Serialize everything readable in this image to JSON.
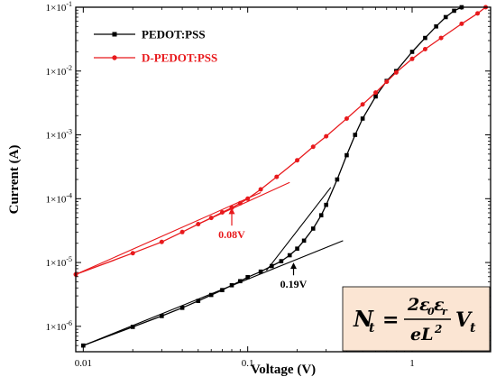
{
  "chart_data": {
    "type": "scatter",
    "xlabel": "Voltage (V)",
    "ylabel": "Current (A)",
    "xscale": "log",
    "yscale": "log",
    "xlim": [
      0.009,
      3.0
    ],
    "ylim": [
      4e-07,
      0.1
    ],
    "x_ticks": [
      {
        "value": 0.01,
        "label": "0.01"
      },
      {
        "value": 0.1,
        "label": "0.1"
      },
      {
        "value": 1,
        "label": "1"
      }
    ],
    "y_ticks": [
      {
        "value": 1e-06,
        "base": "1×10",
        "exp": "-6"
      },
      {
        "value": 1e-05,
        "base": "1×10",
        "exp": "-5"
      },
      {
        "value": 0.0001,
        "base": "1×10",
        "exp": "-4"
      },
      {
        "value": 0.001,
        "base": "1×10",
        "exp": "-3"
      },
      {
        "value": 0.01,
        "base": "1×10",
        "exp": "-2"
      },
      {
        "value": 0.1,
        "base": "1×10",
        "exp": "-1"
      }
    ],
    "grid": false,
    "legend_position": "top-left",
    "series": [
      {
        "name": "PEDOT:PSS",
        "color": "#000000",
        "marker": "square",
        "x": [
          0.01,
          0.02,
          0.03,
          0.04,
          0.05,
          0.06,
          0.07,
          0.08,
          0.09,
          0.1,
          0.12,
          0.14,
          0.16,
          0.18,
          0.2,
          0.22,
          0.25,
          0.28,
          0.3,
          0.35,
          0.4,
          0.45,
          0.5,
          0.6,
          0.7,
          0.8,
          1.0,
          1.2,
          1.4,
          1.6,
          1.8,
          2.0
        ],
        "y": [
          5e-07,
          9.8e-07,
          1.45e-06,
          1.95e-06,
          2.5e-06,
          3.1e-06,
          3.7e-06,
          4.4e-06,
          5.1e-06,
          5.9e-06,
          7.2e-06,
          8.8e-06,
          1.05e-05,
          1.3e-05,
          1.65e-05,
          2.2e-05,
          3.4e-05,
          5.5e-05,
          8e-05,
          0.0002,
          0.00048,
          0.001,
          0.0018,
          0.004,
          0.007,
          0.01,
          0.02,
          0.033,
          0.05,
          0.07,
          0.088,
          0.1
        ]
      },
      {
        "name": "D-PEDOT:PSS",
        "color": "#e8191c",
        "marker": "circle",
        "x": [
          0.009,
          0.02,
          0.03,
          0.04,
          0.05,
          0.06,
          0.07,
          0.08,
          0.09,
          0.1,
          0.12,
          0.15,
          0.2,
          0.25,
          0.3,
          0.4,
          0.5,
          0.6,
          0.7,
          0.8,
          1.0,
          1.2,
          1.5,
          2.0,
          2.5,
          2.8
        ],
        "y": [
          6.5e-06,
          1.4e-05,
          2.1e-05,
          3e-05,
          4e-05,
          5e-05,
          6.1e-05,
          7.2e-05,
          8.5e-05,
          0.0001,
          0.00014,
          0.00022,
          0.0004,
          0.00065,
          0.00095,
          0.0018,
          0.003,
          0.0046,
          0.0068,
          0.0095,
          0.0155,
          0.022,
          0.033,
          0.055,
          0.08,
          0.1
        ]
      }
    ],
    "fit_lines": [
      {
        "color": "#000000",
        "from": [
          0.01,
          5e-07
        ],
        "to": [
          0.38,
          2.2e-05
        ]
      },
      {
        "color": "#000000",
        "from": [
          0.13,
          7.5e-06
        ],
        "to": [
          0.32,
          0.00015
        ]
      },
      {
        "color": "#e8191c",
        "from": [
          0.009,
          6.5e-06
        ],
        "to": [
          0.12,
          0.000125
        ]
      },
      {
        "color": "#e8191c",
        "from": [
          0.05,
          4e-05
        ],
        "to": [
          0.18,
          0.00018
        ]
      }
    ],
    "annotations": [
      {
        "text": "0.08V",
        "color": "#e8191c",
        "point": [
          0.08,
          7.2e-05
        ],
        "label_at": [
          0.08,
          2.4e-05
        ]
      },
      {
        "text": "0.19V",
        "color": "#000000",
        "point": [
          0.19,
          1e-05
        ],
        "label_at": [
          0.19,
          4e-06
        ]
      }
    ],
    "formula": {
      "lhs": "N",
      "lhs_sub": "t",
      "equals": "=",
      "num_coef": "2",
      "num_eps": "ε",
      "num_sub0": "0",
      "num_sub_r": "r",
      "den_e": "eL",
      "den_exp": "2",
      "rhs": "V",
      "rhs_sub": "t",
      "background": "#fbe5d3"
    }
  }
}
